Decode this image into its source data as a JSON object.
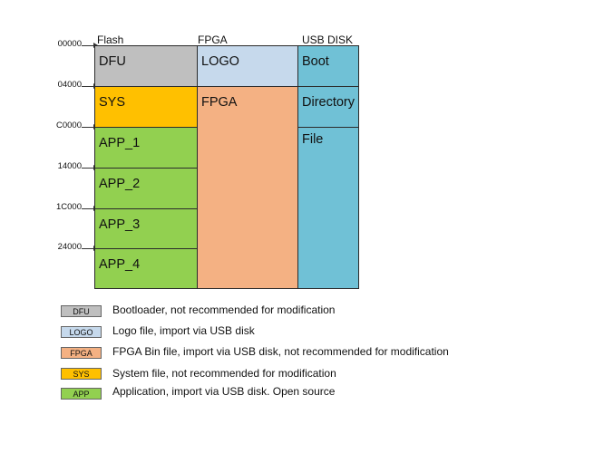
{
  "columns": {
    "flash": "Flash",
    "fpga": "FPGA",
    "usb_disk": "USB DISK"
  },
  "addresses": [
    "00000",
    "04000",
    "C0000",
    "14000",
    "1C000",
    "24000"
  ],
  "flash_blocks": [
    {
      "label": "DFU",
      "color": "#bfbfbf"
    },
    {
      "label": "SYS",
      "color": "#ffc000"
    },
    {
      "label": "APP_1",
      "color": "#92d050"
    },
    {
      "label": "APP_2",
      "color": "#92d050"
    },
    {
      "label": "APP_3",
      "color": "#92d050"
    },
    {
      "label": "APP_4",
      "color": "#92d050"
    }
  ],
  "fpga_blocks": [
    {
      "label": "LOGO",
      "color": "#c6d9ec"
    },
    {
      "label": "FPGA",
      "color": "#f4b183"
    }
  ],
  "usb_blocks": [
    {
      "label": "Boot",
      "color": "#70c1d6"
    },
    {
      "label": "Directory",
      "color": "#70c1d6"
    },
    {
      "label": "File",
      "color": "#70c1d6"
    }
  ],
  "legend": [
    {
      "tag": "DFU",
      "color": "#bfbfbf",
      "text": "Bootloader, not recommended for modification"
    },
    {
      "tag": "LOGO",
      "color": "#c6d9ec",
      "text": "Logo file, import via USB disk"
    },
    {
      "tag": "FPGA",
      "color": "#f4b183",
      "text": "FPGA Bin file, import via USB disk, not recommended for modification"
    },
    {
      "tag": "SYS",
      "color": "#ffc000",
      "text": "System file, not recommended for modification"
    },
    {
      "tag": "APP",
      "color": "#92d050",
      "text": "Application, import via USB disk. Open source"
    }
  ]
}
